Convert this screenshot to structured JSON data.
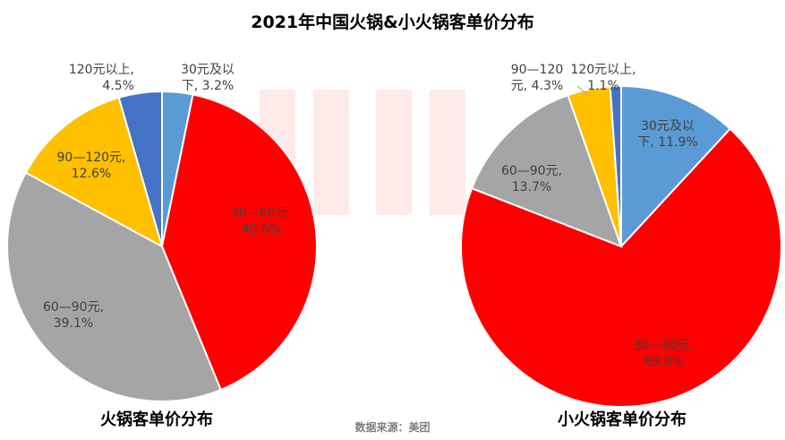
{
  "title": "2021年中国火锅&小火锅客单价分布",
  "source": "数据来源：美团",
  "colors": {
    "30元及以下": "#5b9bd5",
    "30—60元": "#ff0000",
    "60—90元": "#a5a5a5",
    "90—120元": "#ffc000",
    "120元以上": "#4472c4"
  },
  "chart_data": [
    {
      "type": "pie",
      "title": "火锅客单价分布",
      "slices": [
        {
          "label": "30元及以下",
          "value": 3.2,
          "text": [
            "30元及以",
            "下, 3.2%"
          ]
        },
        {
          "label": "30—60元",
          "value": 40.6,
          "text": [
            "30—60元,",
            "40.6%"
          ]
        },
        {
          "label": "60—90元",
          "value": 39.1,
          "text": [
            "60—90元,",
            "39.1%"
          ]
        },
        {
          "label": "90—120元",
          "value": 12.6,
          "text": [
            "90—120元,",
            "12.6%"
          ]
        },
        {
          "label": "120元以上",
          "value": 4.5,
          "text": [
            "120元以上,",
            "4.5%"
          ]
        }
      ]
    },
    {
      "type": "pie",
      "title": "小火锅客单价分布",
      "slices": [
        {
          "label": "30元及以下",
          "value": 11.9,
          "text": [
            "30元及以",
            "下, 11.9%"
          ]
        },
        {
          "label": "30—60元",
          "value": 69.0,
          "text": [
            "30—60元,",
            "69.0%"
          ]
        },
        {
          "label": "60—90元",
          "value": 13.7,
          "text": [
            "60—90元,",
            "13.7%"
          ]
        },
        {
          "label": "90—120元",
          "value": 4.3,
          "text": [
            "90—120",
            "元, 4.3%"
          ]
        },
        {
          "label": "120元以上",
          "value": 1.1,
          "text": [
            "120元以上,",
            "1.1%"
          ]
        }
      ]
    }
  ]
}
